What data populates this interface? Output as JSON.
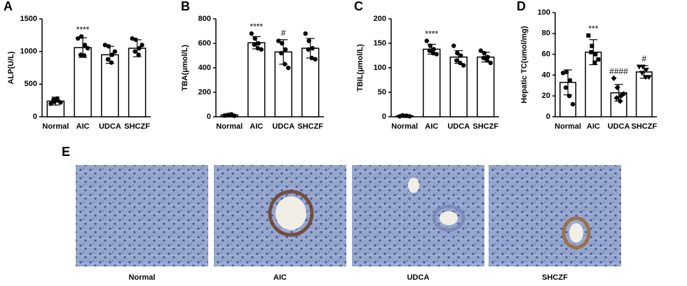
{
  "chart_data": [
    {
      "type": "bar",
      "panel": "A",
      "ylabel": "ALP(U/L)",
      "categories": [
        "Normal",
        "AIC",
        "UDCA",
        "SHCZF"
      ],
      "values": [
        240,
        1060,
        950,
        1050
      ],
      "errors": [
        60,
        150,
        130,
        130
      ],
      "points": [
        [
          200,
          230,
          250,
          260,
          280,
          220
        ],
        [
          1200,
          1230,
          1100,
          950,
          940,
          1050
        ],
        [
          1100,
          1080,
          950,
          880,
          830,
          1000
        ],
        [
          1200,
          1180,
          1050,
          1000,
          950,
          1100
        ]
      ],
      "annotations": [
        {
          "category": "AIC",
          "text": "****"
        }
      ],
      "ylim": [
        0,
        1500
      ],
      "yticks": [
        0,
        500,
        1000,
        1500
      ],
      "bar_color": "#ffffff",
      "edge_color": "#000000",
      "point_color": "#000000"
    },
    {
      "type": "bar",
      "panel": "B",
      "ylabel": "TBA(μmol/L)",
      "categories": [
        "Normal",
        "AIC",
        "UDCA",
        "SHCZF"
      ],
      "values": [
        15,
        605,
        530,
        560
      ],
      "errors": [
        8,
        50,
        100,
        80
      ],
      "points": [
        [
          10,
          15,
          20,
          12,
          18,
          8
        ],
        [
          680,
          640,
          600,
          590,
          560,
          550
        ],
        [
          620,
          600,
          550,
          520,
          430,
          400
        ],
        [
          680,
          620,
          560,
          550,
          480,
          470
        ]
      ],
      "annotations": [
        {
          "category": "AIC",
          "text": "****"
        },
        {
          "category": "UDCA",
          "text": "#"
        }
      ],
      "ylim": [
        0,
        800
      ],
      "yticks": [
        0,
        200,
        400,
        600,
        800
      ],
      "bar_color": "#ffffff",
      "edge_color": "#000000",
      "point_color": "#000000"
    },
    {
      "type": "bar",
      "panel": "C",
      "ylabel": "TBIL(μmol/L)",
      "categories": [
        "Normal",
        "AIC",
        "UDCA",
        "SHCZF"
      ],
      "values": [
        2,
        138,
        122,
        122
      ],
      "errors": [
        1,
        10,
        13,
        10
      ],
      "points": [
        [
          1,
          2,
          2,
          3,
          2,
          1
        ],
        [
          155,
          145,
          138,
          135,
          130,
          128
        ],
        [
          145,
          130,
          125,
          115,
          110,
          105
        ],
        [
          135,
          130,
          122,
          120,
          115,
          110
        ]
      ],
      "annotations": [
        {
          "category": "AIC",
          "text": "****"
        }
      ],
      "ylim": [
        0,
        200
      ],
      "yticks": [
        0,
        50,
        100,
        150,
        200
      ],
      "bar_color": "#ffffff",
      "edge_color": "#000000",
      "point_color": "#000000"
    },
    {
      "type": "bar",
      "panel": "D",
      "ylabel": "Hepatic TC(umol/mg)",
      "categories": [
        "Normal",
        "AIC",
        "UDCA",
        "SHCZF"
      ],
      "values": [
        33,
        62,
        23,
        43
      ],
      "errors": [
        12,
        12,
        8,
        6
      ],
      "points": [
        [
          42,
          43,
          35,
          28,
          20,
          12
        ],
        [
          78,
          68,
          60,
          62,
          52,
          55
        ],
        [
          37,
          28,
          20,
          18,
          15,
          22
        ],
        [
          48,
          48,
          45,
          42,
          38,
          38
        ]
      ],
      "marker_shapes": [
        "circle",
        "square",
        "diamond",
        "triangle"
      ],
      "annotations": [
        {
          "category": "AIC",
          "text": "***"
        },
        {
          "category": "UDCA",
          "text": "####"
        },
        {
          "category": "SHCZF",
          "text": "#"
        }
      ],
      "ylim": [
        0,
        100
      ],
      "yticks": [
        0,
        20,
        40,
        60,
        80,
        100
      ],
      "bar_color": "#ffffff",
      "edge_color": "#000000",
      "point_color": "#000000"
    }
  ],
  "panel_e": {
    "label": "E",
    "captions": [
      "Normal",
      "AIC",
      "UDCA",
      "SHCZF"
    ]
  }
}
